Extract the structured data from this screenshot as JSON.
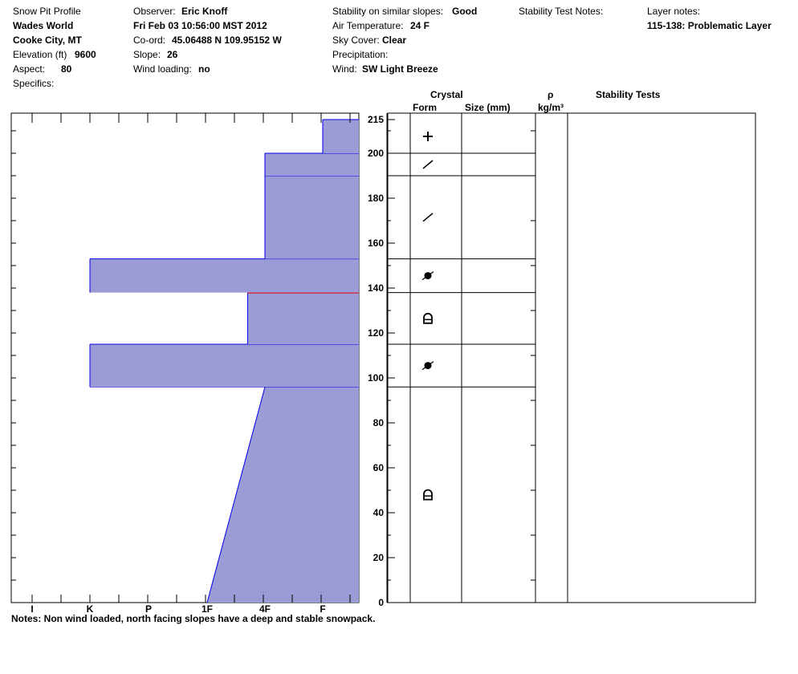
{
  "header": {
    "title": "Snow Pit Profile",
    "location": "Wades World",
    "place": "Cooke City, MT",
    "elevation_label": "Elevation (ft)",
    "elevation_value": "9600",
    "aspect_label": "Aspect:",
    "aspect_value": "80",
    "specifics_label": "Specifics:",
    "observer_label": "Observer:",
    "observer_value": "Eric Knoff",
    "datetime": "Fri Feb 03 10:56:00 MST 2012",
    "coord_label": "Co-ord:",
    "coord_value": "45.06488 N 109.95152 W",
    "slope_label": "Slope:",
    "slope_value": "26",
    "wind_loading_label": "Wind loading:",
    "wind_loading_value": "no",
    "stability_label": "Stability on similar slopes:",
    "stability_value": "Good",
    "air_temp_label": "Air Temperature:",
    "air_temp_value": "24 F",
    "sky_label": "Sky Cover:",
    "sky_value": "Clear",
    "precip_label": "Precipitation:",
    "wind_label": "Wind:",
    "wind_value": "SW Light Breeze",
    "stability_test_notes_label": "Stability Test Notes:",
    "layer_notes_label": "Layer notes:",
    "layer_notes_value": "115-138: Problematic Layer"
  },
  "table_headers": {
    "crystal": "Crystal",
    "form": "Form",
    "size": "Size (mm)",
    "rho": "ρ",
    "density_unit": "kg/m³",
    "stability_tests": "Stability Tests"
  },
  "notes": "Notes:  Non wind loaded, north facing slopes have a deep and stable snowpack.",
  "chart_data": {
    "type": "bar",
    "subtype": "snow-hardness-profile",
    "y_axis": {
      "range": [
        0,
        215
      ],
      "ticks": [
        0,
        20,
        40,
        60,
        80,
        100,
        120,
        140,
        160,
        180,
        200,
        215
      ]
    },
    "x_axis": {
      "hardness_labels": [
        "I",
        "K",
        "P",
        "1F",
        "4F",
        "F"
      ],
      "range": [
        0,
        6
      ]
    },
    "layers": [
      {
        "bottom": 0,
        "top": 96,
        "hardness_bottom": 3.0,
        "hardness_top": 4.0,
        "form": "rounded-faceted"
      },
      {
        "bottom": 96,
        "top": 115,
        "hardness_bottom": 1.0,
        "hardness_top": 1.0,
        "form": "surface-hoar"
      },
      {
        "bottom": 115,
        "top": 138,
        "hardness_bottom": 3.7,
        "hardness_top": 3.7,
        "form": "rounded-faceted"
      },
      {
        "bottom": 138,
        "top": 153,
        "hardness_bottom": 1.0,
        "hardness_top": 1.0,
        "form": "surface-hoar"
      },
      {
        "bottom": 153,
        "top": 190,
        "hardness_bottom": 4.0,
        "hardness_top": 4.0,
        "form": "decomposing"
      },
      {
        "bottom": 190,
        "top": 200,
        "hardness_bottom": 4.0,
        "hardness_top": 4.0,
        "form": "decomposing"
      },
      {
        "bottom": 200,
        "top": 215,
        "hardness_bottom": 5.0,
        "hardness_top": 5.0,
        "form": "new-snow"
      }
    ],
    "critical_boundary": 138,
    "colors": {
      "fill": "#9b9bd6",
      "layer_line": "#0000ee",
      "critical_line": "#ee0000"
    }
  }
}
